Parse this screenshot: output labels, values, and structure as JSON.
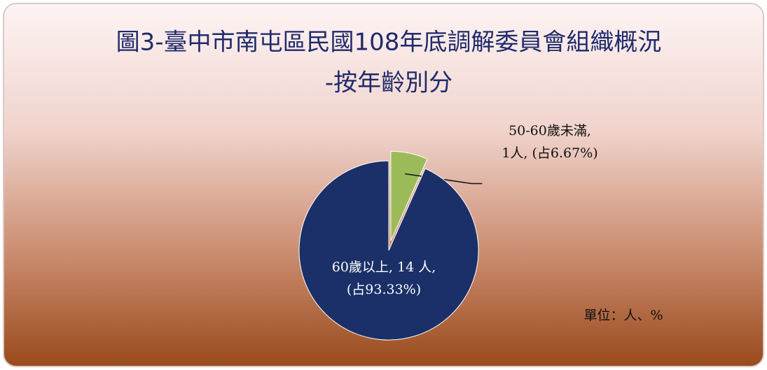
{
  "chart_data": {
    "type": "pie",
    "title_lines": [
      "圖3-臺中市南屯區民國108年底調解委員會組織概況",
      "-按年齡別分"
    ],
    "categories": [
      "50-60歲未滿",
      "60歲以上"
    ],
    "values": [
      1,
      14
    ],
    "percentages": [
      6.67,
      93.33
    ],
    "value_labels": [
      [
        "50-60歲未滿,",
        "1人, (占6.67%)"
      ],
      [
        "60歲以上, 14 人,",
        "(占93.33%)"
      ]
    ],
    "colors": [
      "#9bbb59",
      "#1b3068"
    ],
    "exploded": [
      true,
      false
    ],
    "note": "單位：人、%"
  }
}
